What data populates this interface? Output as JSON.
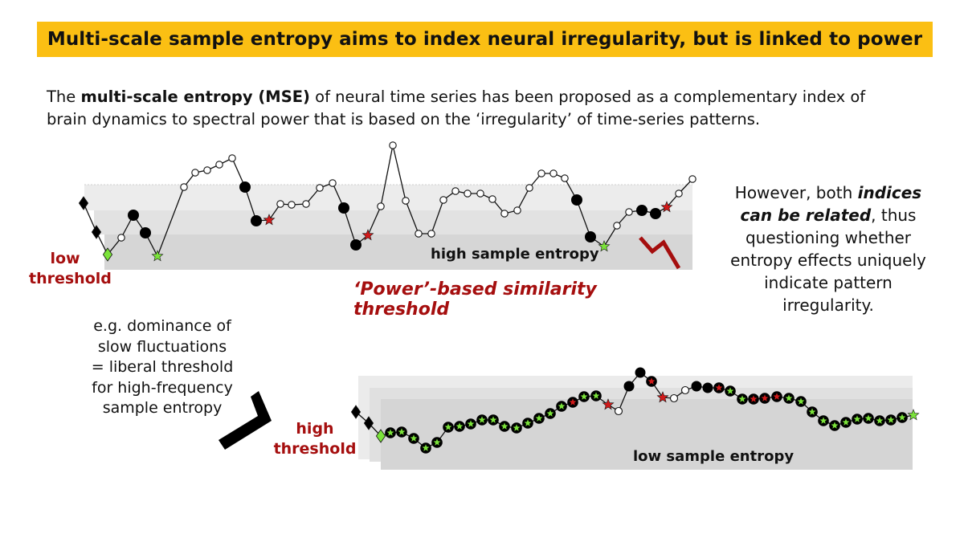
{
  "title": "Multi-scale sample entropy aims to index neural irregularity, but is linked to power",
  "intro": {
    "part1": "The ",
    "bold": "multi-scale entropy (MSE)",
    "part2": " of neural time series has been proposed as a complementary index of brain dynamics to spectral power that is based on the ‘irregularity’ of time-series patterns."
  },
  "top_panel": {
    "threshold_label_line1": "low",
    "threshold_label_line2": "threshold",
    "band_label": "high sample entropy",
    "power_label": "‘Power’-based similarity threshold"
  },
  "side_note": {
    "part1": "However, both ",
    "italic": "indices can be related",
    "part2": ", thus questioning whether entropy effects uniquely indicate pattern irregularity."
  },
  "example": {
    "lines": [
      "e.g. dominance of",
      "slow fluctuations",
      "= liberal threshold",
      "for high-frequency",
      "sample entropy"
    ]
  },
  "bottom_panel": {
    "threshold_label_line1": "high",
    "threshold_label_line2": "threshold",
    "band_label": "low sample entropy"
  },
  "colors": {
    "banner": "#fbbf13",
    "red_label": "#a50e0e",
    "star_red": "#d11a1a",
    "star_green": "#7be33a",
    "band": "#d9d9d9",
    "marker_black": "#000000"
  },
  "top_series": [
    {
      "m": "dk"
    },
    {
      "m": "dk"
    },
    {
      "m": "dg"
    },
    {
      "m": "o"
    },
    {
      "m": "b"
    },
    {
      "m": "b"
    },
    {
      "m": "sg"
    },
    {
      "m": "o"
    },
    {
      "m": "o"
    },
    {
      "m": "o"
    },
    {
      "m": "o"
    },
    {
      "m": "o"
    },
    {
      "m": "b"
    },
    {
      "m": "b"
    },
    {
      "m": "sr"
    },
    {
      "m": "o"
    },
    {
      "m": "o"
    },
    {
      "m": "o"
    },
    {
      "m": "o"
    },
    {
      "m": "o"
    },
    {
      "m": "b"
    },
    {
      "m": "b"
    },
    {
      "m": "sr"
    },
    {
      "m": "o"
    },
    {
      "m": "o"
    },
    {
      "m": "o"
    },
    {
      "m": "o"
    },
    {
      "m": "o"
    },
    {
      "m": "o"
    },
    {
      "m": "o"
    },
    {
      "m": "o"
    },
    {
      "m": "o"
    },
    {
      "m": "o"
    },
    {
      "m": "o"
    },
    {
      "m": "o"
    },
    {
      "m": "o"
    },
    {
      "m": "o"
    },
    {
      "m": "o"
    },
    {
      "m": "o"
    },
    {
      "m": "b"
    },
    {
      "m": "b"
    },
    {
      "m": "sg"
    },
    {
      "m": "o"
    },
    {
      "m": "o"
    },
    {
      "m": "b"
    },
    {
      "m": "b"
    },
    {
      "m": "sr"
    },
    {
      "m": "o"
    },
    {
      "m": "o"
    }
  ],
  "bottom_series": [
    {
      "m": "dk"
    },
    {
      "m": "dk"
    },
    {
      "m": "dg"
    },
    {
      "m": "bg"
    },
    {
      "m": "bg"
    },
    {
      "m": "bg"
    },
    {
      "m": "bg"
    },
    {
      "m": "bg"
    },
    {
      "m": "bg"
    },
    {
      "m": "bg"
    },
    {
      "m": "bg"
    },
    {
      "m": "bg"
    },
    {
      "m": "bg"
    },
    {
      "m": "bg"
    },
    {
      "m": "bg"
    },
    {
      "m": "bg"
    },
    {
      "m": "bg"
    },
    {
      "m": "bg"
    },
    {
      "m": "bg"
    },
    {
      "m": "br"
    },
    {
      "m": "bg"
    },
    {
      "m": "bg"
    },
    {
      "m": "sr"
    },
    {
      "m": "o"
    },
    {
      "m": "b"
    },
    {
      "m": "b"
    },
    {
      "m": "br"
    },
    {
      "m": "sr"
    },
    {
      "m": "o"
    },
    {
      "m": "o"
    },
    {
      "m": "b"
    },
    {
      "m": "b"
    },
    {
      "m": "br"
    },
    {
      "m": "bg"
    },
    {
      "m": "bg"
    },
    {
      "m": "br"
    },
    {
      "m": "br"
    },
    {
      "m": "br"
    },
    {
      "m": "bg"
    },
    {
      "m": "bg"
    },
    {
      "m": "bg"
    },
    {
      "m": "bg"
    },
    {
      "m": "bg"
    },
    {
      "m": "bg"
    },
    {
      "m": "bg"
    },
    {
      "m": "bg"
    },
    {
      "m": "bg"
    },
    {
      "m": "bg"
    },
    {
      "m": "bg"
    },
    {
      "m": "sg"
    }
  ]
}
